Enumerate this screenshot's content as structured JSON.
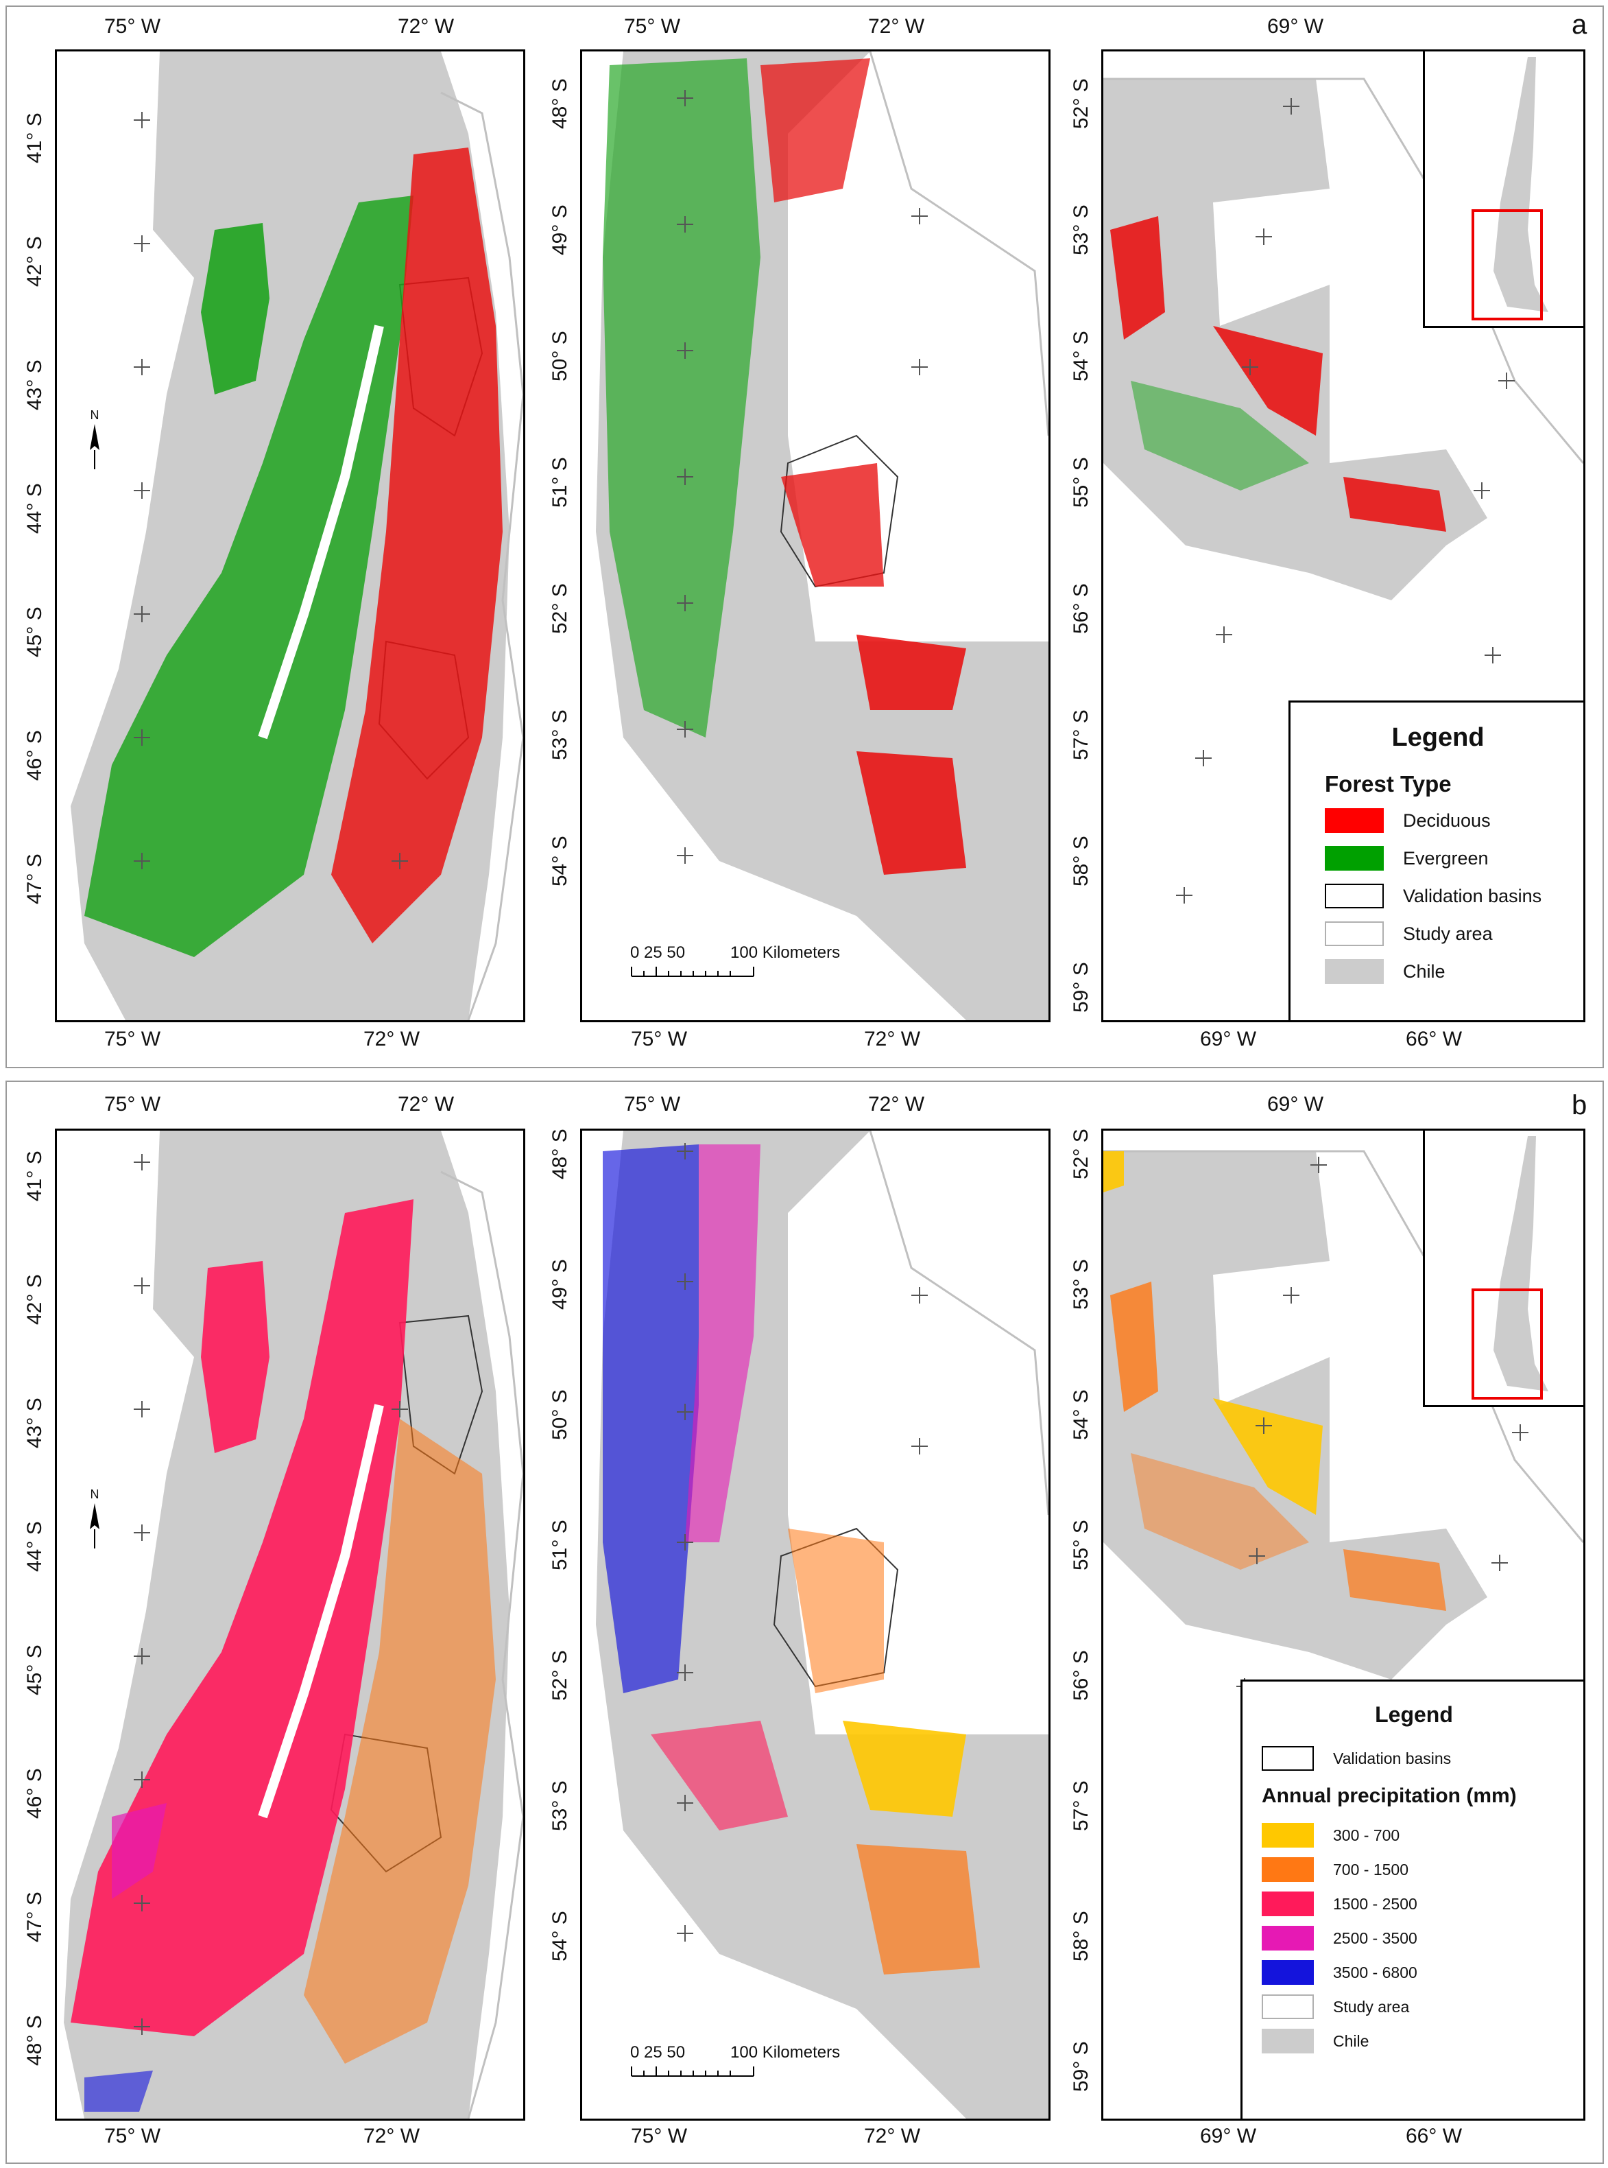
{
  "panels": [
    {
      "letter": "a",
      "maps": [
        {
          "top_labels": [
            "75° W",
            "72° W"
          ],
          "bottom_labels": [
            "75° W",
            "72° W"
          ],
          "left_labels": [
            "41° S",
            "42° S",
            "43° S",
            "44° S",
            "45° S",
            "46° S",
            "47° S"
          ]
        },
        {
          "top_labels": [
            "75° W",
            "72° W"
          ],
          "bottom_labels": [
            "75° W",
            "72° W"
          ],
          "left_labels": [
            "48° S",
            "49° S",
            "50° S",
            "51° S",
            "52° S",
            "53° S",
            "54° S"
          ]
        },
        {
          "top_labels": [
            "69° W"
          ],
          "bottom_labels": [
            "69° W",
            "66° W"
          ],
          "left_labels": [
            "52° S",
            "53° S",
            "54° S",
            "55° S",
            "56° S",
            "57° S",
            "58° S",
            "59° S"
          ]
        }
      ],
      "scale": {
        "ticks": "0 25 50",
        "end": "100 Kilometers"
      },
      "north": "N",
      "legend": {
        "title": "Legend",
        "subtitle": "Forest Type",
        "items": [
          {
            "label": "Deciduous",
            "color": "#ff0000"
          },
          {
            "label": "Evergreen",
            "color": "#00a000"
          },
          {
            "label": "Validation basins",
            "color": "#ffffff",
            "outline": "#000000"
          },
          {
            "label": "Study area",
            "color": "#ffffff",
            "outline": "#b0b0b0"
          },
          {
            "label": "Chile",
            "color": "#cccccc"
          }
        ]
      }
    },
    {
      "letter": "b",
      "maps": [
        {
          "top_labels": [
            "75° W",
            "72° W"
          ],
          "bottom_labels": [
            "75° W",
            "72° W"
          ],
          "left_labels": [
            "41° S",
            "42° S",
            "43° S",
            "44° S",
            "45° S",
            "46° S",
            "47° S",
            "48° S"
          ]
        },
        {
          "top_labels": [
            "75° W",
            "72° W"
          ],
          "bottom_labels": [
            "75° W",
            "72° W"
          ],
          "left_labels": [
            "48° S",
            "49° S",
            "50° S",
            "51° S",
            "52° S",
            "53° S",
            "54° S"
          ]
        },
        {
          "top_labels": [
            "69° W"
          ],
          "bottom_labels": [
            "69° W",
            "66° W"
          ],
          "left_labels": [
            "52° S",
            "53° S",
            "54° S",
            "55° S",
            "56° S",
            "57° S",
            "58° S",
            "59° S"
          ]
        }
      ],
      "scale": {
        "ticks": "0 25 50",
        "end": "100 Kilometers"
      },
      "north": "N",
      "legend": {
        "title": "Legend",
        "top_item": {
          "label": "Validation basins",
          "color": "#ffffff",
          "outline": "#000000"
        },
        "subtitle": "Annual precipitation (mm)",
        "items": [
          {
            "label": "300 - 700",
            "color": "#ffc800"
          },
          {
            "label": "700 - 1500",
            "color": "#ff7814"
          },
          {
            "label": "1500 - 2500",
            "color": "#ff1a5a"
          },
          {
            "label": "2500 - 3500",
            "color": "#e619b4"
          },
          {
            "label": "3500 - 6800",
            "color": "#1414dc"
          },
          {
            "label": "Study area",
            "color": "#ffffff",
            "outline": "#b0b0b0"
          },
          {
            "label": "Chile",
            "color": "#cccccc"
          }
        ]
      }
    }
  ]
}
